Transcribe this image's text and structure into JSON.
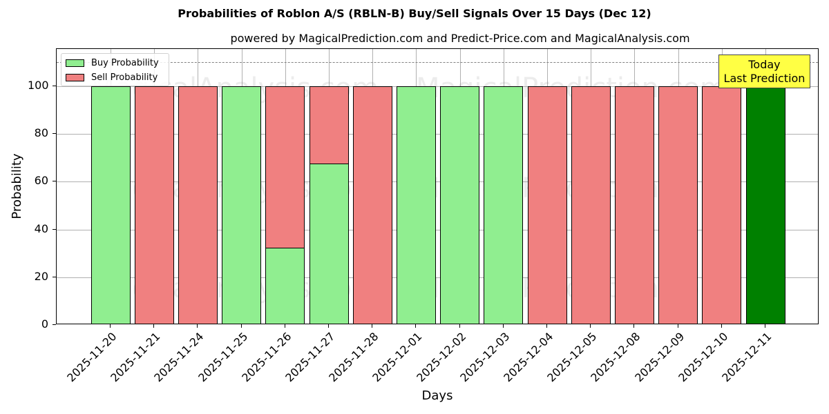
{
  "title": "Probabilities of Roblon A/S (RBLN-B) Buy/Sell Signals Over 15 Days (Dec 12)",
  "subtitle": "powered by MagicalPrediction.com and Predict-Price.com and MagicalAnalysis.com",
  "legend": {
    "buy_label": "Buy Probability",
    "sell_label": "Sell Probability"
  },
  "annotation": {
    "line1": "Today",
    "line2": "Last Prediction"
  },
  "watermarks": [
    "MagicalAnalysis.com",
    "MagicalPrediction.com"
  ],
  "colors": {
    "buy": "#90ee90",
    "sell": "#f08080",
    "today": "#008000",
    "annotation_bg": "#ffff44"
  },
  "chart_data": {
    "type": "bar",
    "stacked": true,
    "title": "Probabilities of Roblon A/S (RBLN-B) Buy/Sell Signals Over 15 Days (Dec 12)",
    "subtitle": "powered by MagicalPrediction.com and Predict-Price.com and MagicalAnalysis.com",
    "xlabel": "Days",
    "ylabel": "Probability",
    "ylim": [
      0,
      115
    ],
    "yticks": [
      0,
      20,
      40,
      60,
      80,
      100
    ],
    "grid": true,
    "legend_position": "upper left",
    "reference_line": {
      "y": 110,
      "style": "dashed",
      "color": "#808080"
    },
    "categories": [
      "2025-11-20",
      "2025-11-21",
      "2025-11-24",
      "2025-11-25",
      "2025-11-26",
      "2025-11-27",
      "2025-11-28",
      "2025-12-01",
      "2025-12-02",
      "2025-12-03",
      "2025-12-04",
      "2025-12-05",
      "2025-12-08",
      "2025-12-09",
      "2025-12-10",
      "2025-12-11"
    ],
    "series": [
      {
        "name": "Buy Probability",
        "color": "#90ee90",
        "values": [
          100,
          0,
          0,
          100,
          32.4,
          67.6,
          0,
          100,
          100,
          100,
          0,
          0,
          0,
          0,
          0,
          100
        ]
      },
      {
        "name": "Sell Probability",
        "color": "#f08080",
        "values": [
          0,
          100,
          100,
          0,
          67.6,
          32.4,
          100,
          0,
          0,
          0,
          100,
          100,
          100,
          100,
          100,
          0
        ]
      }
    ],
    "highlight": {
      "category": "2025-12-11",
      "color": "#008000",
      "label": "Today\nLast Prediction"
    }
  }
}
